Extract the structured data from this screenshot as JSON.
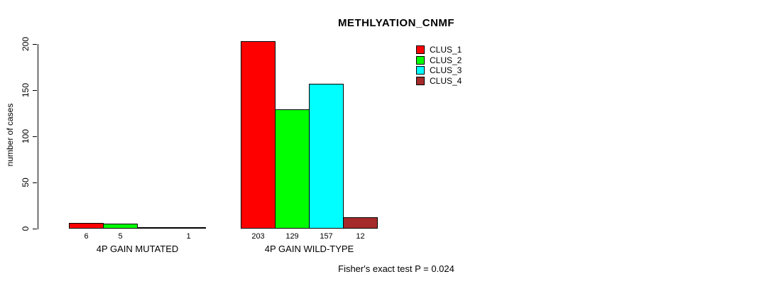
{
  "chart_data": {
    "type": "bar",
    "title": "METHLYATION_CNMF",
    "ylabel": "number of cases",
    "xlabel": "",
    "ylim": [
      0,
      200
    ],
    "yticks": [
      0,
      50,
      100,
      150,
      200
    ],
    "grid": false,
    "categories": [
      "4P GAIN MUTATED",
      "4P GAIN WILD-TYPE"
    ],
    "series": [
      {
        "name": "CLUS_1",
        "color": "#ff0000",
        "values": [
          6,
          203
        ]
      },
      {
        "name": "CLUS_2",
        "color": "#00ff00",
        "values": [
          5,
          129
        ]
      },
      {
        "name": "CLUS_3",
        "color": "#00ffff",
        "values": [
          0,
          157
        ]
      },
      {
        "name": "CLUS_4",
        "color": "#a52a2a",
        "values": [
          1,
          12
        ]
      }
    ],
    "bar_labels": [
      [
        "6",
        "5",
        "",
        "1"
      ],
      [
        "203",
        "129",
        "157",
        "12"
      ]
    ],
    "legend": {
      "position": "top-right",
      "entries": [
        "CLUS_1",
        "CLUS_2",
        "CLUS_3",
        "CLUS_4"
      ]
    },
    "annotation": "Fisher's exact test P = 0.024"
  }
}
